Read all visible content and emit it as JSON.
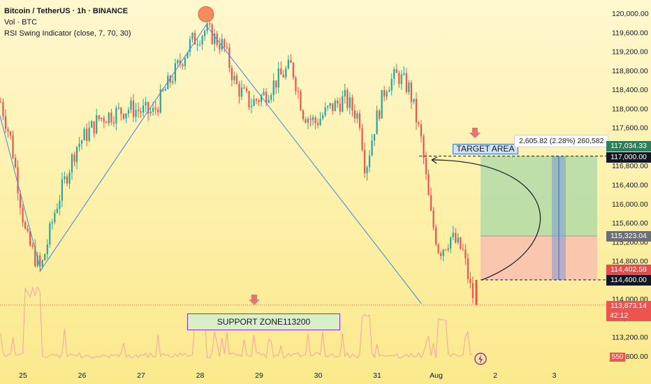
{
  "legend": {
    "title": "Bitcoin / TetherUS · 1h · BINANCE",
    "volume": "Vol · BTC",
    "indicator": "RSI Swing Indicator (close, 7, 70, 30)"
  },
  "labels": {
    "target_area": "TARGET AREA",
    "support_zone": "SUPPORT ZONE113200",
    "measure": "2,605.82 (2.28%) 260,582"
  },
  "price_tags": {
    "target_top": "117,034.33",
    "target": "117,000.00",
    "mid": "115,323.04",
    "entry_red": "114,402.58",
    "entry": "114,400.00",
    "current": "113,873.14",
    "countdown": "42:12",
    "volume": "550"
  },
  "colors": {
    "up": "#26a69a",
    "down": "#ef5350",
    "line": "#4a90d9",
    "target_zone": "#a8d8a8",
    "stop_zone": "#f8c0b0",
    "support_box": "#d8f0c8",
    "support_border": "#9c27b0",
    "arrow": "#e57373",
    "peak_marker": "#f28c5c"
  },
  "chart_data": {
    "type": "candlestick",
    "symbol": "Bitcoin / TetherUS",
    "interval": "1h",
    "exchange": "BINANCE",
    "x_ticks": [
      "25",
      "26",
      "27",
      "28",
      "29",
      "30",
      "31",
      "Aug",
      "2",
      "3"
    ],
    "y_ticks": [
      120000,
      119600,
      119200,
      118800,
      118400,
      118000,
      117600,
      117200,
      116800,
      116400,
      116000,
      115600,
      115200,
      114800,
      114400,
      114000,
      113600,
      113200,
      112800
    ],
    "y_tick_labels": [
      "120,000.00",
      "119,600.00",
      "119,200.00",
      "118,800.00",
      "118,400.00",
      "118,000.00",
      "117,600.00",
      "117,200.00",
      "116,800.00",
      "116,400.00",
      "116,000.00",
      "115,600.00",
      "115,200.00",
      "114,800.00",
      "114,400.00",
      "114,000.00",
      "113,600.00",
      "113,200.00",
      "112,800.00"
    ],
    "ylim": [
      112600,
      120150
    ],
    "swing_points": [
      {
        "day": 24.3,
        "price": 119300
      },
      {
        "day": 25.3,
        "price": 114600
      },
      {
        "day": 28.1,
        "price": 119750
      },
      {
        "day": 31.75,
        "price": 113900
      }
    ],
    "peak_marker": {
      "day": 28.1,
      "price": 119980
    },
    "target_price": 117000,
    "entry_price": 114400,
    "mid_price": 115323.04,
    "current_price": 113873.14,
    "support_zone": 113200,
    "measure_change": 2605.82,
    "measure_percent": 2.28
  }
}
